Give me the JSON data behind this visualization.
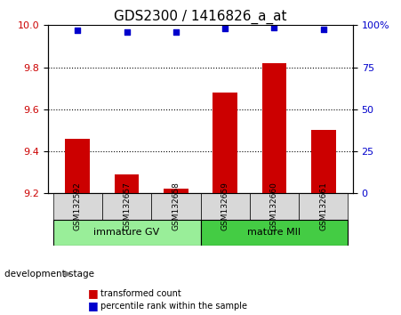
{
  "title": "GDS2300 / 1416826_a_at",
  "samples": [
    "GSM132592",
    "GSM132657",
    "GSM132658",
    "GSM132659",
    "GSM132660",
    "GSM132661"
  ],
  "transformed_counts": [
    9.46,
    9.29,
    9.22,
    9.68,
    9.82,
    9.5
  ],
  "percentile_ranks": [
    97,
    96,
    96,
    98,
    98.5,
    97.5
  ],
  "baseline": 9.2,
  "ylim_left": [
    9.2,
    10.0
  ],
  "ylim_right": [
    0,
    100
  ],
  "yticks_left": [
    9.2,
    9.4,
    9.6,
    9.8,
    10.0
  ],
  "yticks_right": [
    0,
    25,
    50,
    75,
    100
  ],
  "ytick_labels_right": [
    "0",
    "25",
    "50",
    "75",
    "100%"
  ],
  "grid_values": [
    9.4,
    9.6,
    9.8
  ],
  "bar_color": "#cc0000",
  "scatter_color": "#0000cc",
  "group1_label": "immature GV",
  "group2_label": "mature MII",
  "group1_indices": [
    0,
    1,
    2
  ],
  "group2_indices": [
    3,
    4,
    5
  ],
  "group1_color": "#99ee99",
  "group2_color": "#44cc44",
  "xlabel_label": "development stage",
  "legend_bar_label": "transformed count",
  "legend_scatter_label": "percentile rank within the sample",
  "title_fontsize": 11,
  "tick_label_fontsize": 8,
  "axis_label_fontsize": 9
}
